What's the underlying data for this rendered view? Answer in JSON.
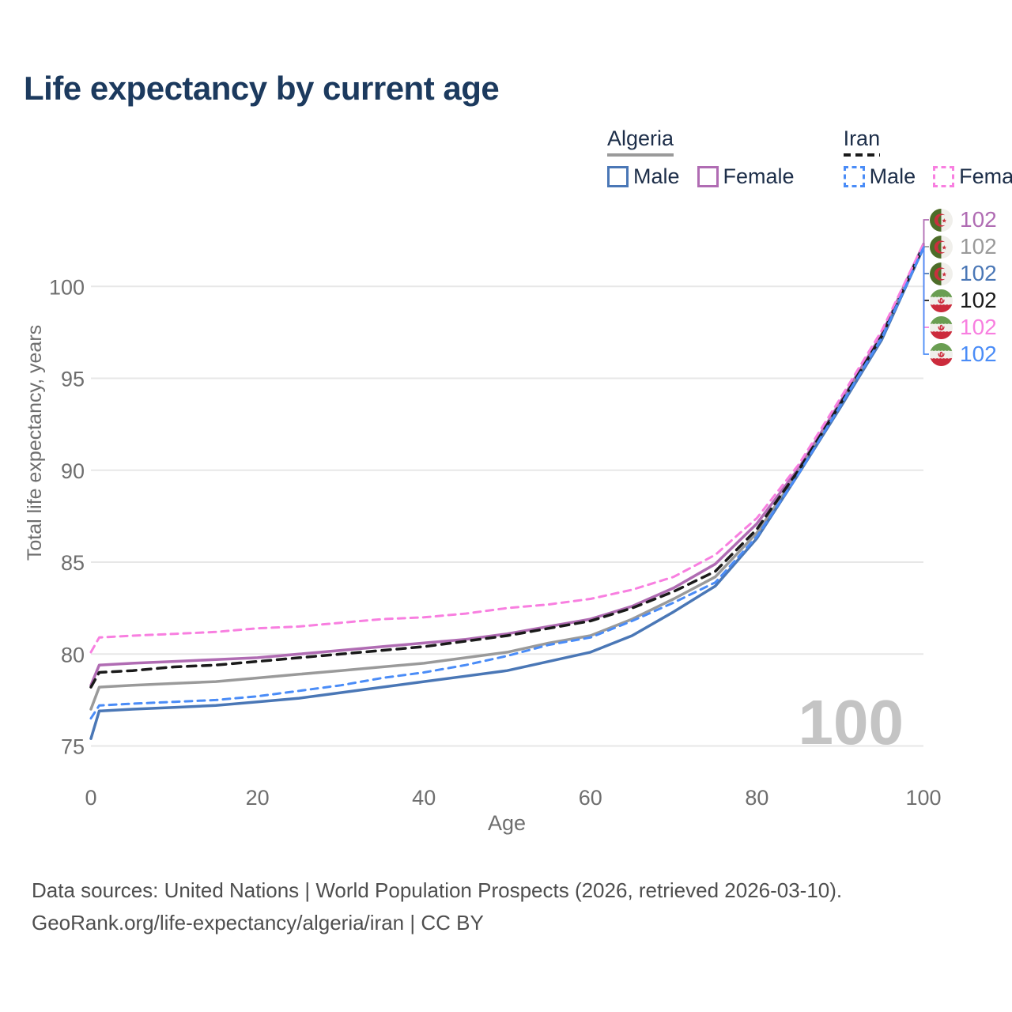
{
  "title": "Life expectancy by current age",
  "legend": {
    "groups": [
      {
        "label": "Algeria",
        "style": "solid",
        "items": [
          {
            "label": "Male",
            "color_key": "algeria_male"
          },
          {
            "label": "Female",
            "color_key": "algeria_female"
          }
        ]
      },
      {
        "label": "Iran",
        "style": "dashed",
        "items": [
          {
            "label": "Male",
            "color_key": "iran_male"
          },
          {
            "label": "Female",
            "color_key": "iran_female"
          }
        ]
      }
    ]
  },
  "colors": {
    "algeria_male": "#4a77b6",
    "algeria_female": "#b06cb3",
    "algeria_all": "#9a9a9a",
    "iran_male": "#4a8cf7",
    "iran_female": "#f87fe0",
    "iran_all": "#1a1a1a",
    "title_text": "#1c3a5e",
    "axis_text": "#6e6e6e",
    "grid": "#e7e7e7",
    "watermark": "#c4c4c4"
  },
  "current_age_watermark": "100",
  "chart_data": {
    "type": "line",
    "title": "Life expectancy by current age",
    "xlabel": "Age",
    "ylabel": "Total life expectancy, years",
    "xlim": [
      0,
      100
    ],
    "ylim": [
      75,
      102.5
    ],
    "x_ticks": [
      0,
      20,
      40,
      60,
      80,
      100
    ],
    "y_ticks": [
      75,
      80,
      85,
      90,
      95,
      100
    ],
    "grid": "horizontal-only",
    "legend_position": "top-right",
    "x": [
      0,
      1,
      5,
      10,
      15,
      20,
      25,
      30,
      35,
      40,
      45,
      50,
      55,
      60,
      65,
      70,
      75,
      80,
      85,
      90,
      95,
      100
    ],
    "series": [
      {
        "name": "Algeria Female",
        "country": "Algeria",
        "sex": "Female",
        "color": "#b06cb3",
        "dash": "none",
        "width": 3.5,
        "values": [
          78.3,
          79.4,
          79.5,
          79.6,
          79.7,
          79.8,
          80.0,
          80.2,
          80.4,
          80.6,
          80.8,
          81.1,
          81.5,
          81.9,
          82.6,
          83.6,
          84.9,
          87.1,
          90.1,
          93.7,
          97.4,
          102.3
        ]
      },
      {
        "name": "Algeria",
        "country": "Algeria",
        "sex": "All",
        "color": "#9a9a9a",
        "dash": "none",
        "width": 3.5,
        "values": [
          77.0,
          78.2,
          78.3,
          78.4,
          78.5,
          78.7,
          78.9,
          79.1,
          79.3,
          79.5,
          79.8,
          80.1,
          80.6,
          81.0,
          81.9,
          83.0,
          84.2,
          86.6,
          89.9,
          93.5,
          97.2,
          102.2
        ]
      },
      {
        "name": "Algeria Male",
        "country": "Algeria",
        "sex": "Male",
        "color": "#4a77b6",
        "dash": "none",
        "width": 3.5,
        "values": [
          75.4,
          76.9,
          77.0,
          77.1,
          77.2,
          77.4,
          77.6,
          77.9,
          78.2,
          78.5,
          78.8,
          79.1,
          79.6,
          80.1,
          81.0,
          82.3,
          83.7,
          86.3,
          89.8,
          93.4,
          97.1,
          102.1
        ]
      },
      {
        "name": "Iran",
        "country": "Iran",
        "sex": "All",
        "color": "#1a1a1a",
        "dash": "11 8",
        "width": 3.5,
        "values": [
          78.2,
          79.0,
          79.1,
          79.3,
          79.4,
          79.6,
          79.8,
          80.0,
          80.2,
          80.4,
          80.7,
          81.0,
          81.4,
          81.8,
          82.5,
          83.4,
          84.5,
          86.8,
          90.0,
          93.6,
          97.3,
          102.2
        ]
      },
      {
        "name": "Iran Female",
        "country": "Iran",
        "sex": "Female",
        "color": "#f87fe0",
        "dash": "9 7",
        "width": 3,
        "values": [
          80.1,
          80.9,
          81.0,
          81.1,
          81.2,
          81.4,
          81.5,
          81.7,
          81.9,
          82.0,
          82.2,
          82.5,
          82.7,
          83.0,
          83.5,
          84.2,
          85.4,
          87.4,
          90.3,
          93.9,
          97.6,
          102.3
        ]
      },
      {
        "name": "Iran Male",
        "country": "Iran",
        "sex": "Male",
        "color": "#4a8cf7",
        "dash": "9 7",
        "width": 3,
        "values": [
          76.5,
          77.2,
          77.3,
          77.4,
          77.5,
          77.7,
          78.0,
          78.3,
          78.7,
          79.0,
          79.4,
          79.9,
          80.5,
          80.9,
          81.8,
          82.8,
          83.9,
          86.4,
          89.8,
          93.5,
          97.2,
          102.1
        ]
      }
    ]
  },
  "end_labels": {
    "rows": [
      {
        "flag": "algeria",
        "series": "Algeria Female",
        "value": "102",
        "color": "#b06cb3"
      },
      {
        "flag": "algeria",
        "series": "Algeria",
        "value": "102",
        "color": "#9a9a9a"
      },
      {
        "flag": "algeria",
        "series": "Algeria Male",
        "value": "102",
        "color": "#4a77b6"
      },
      {
        "flag": "iran",
        "series": "Iran",
        "value": "102",
        "color": "#1a1a1a"
      },
      {
        "flag": "iran",
        "series": "Iran Female",
        "value": "102",
        "color": "#f87fe0"
      },
      {
        "flag": "iran",
        "series": "Iran Male",
        "value": "102",
        "color": "#4a8cf7"
      }
    ]
  },
  "footer": {
    "line1": "Data sources: United Nations | World Population Prospects (2026, retrieved 2026-03-10).",
    "line2": "GeoRank.org/life-expectancy/algeria/iran | CC BY"
  }
}
